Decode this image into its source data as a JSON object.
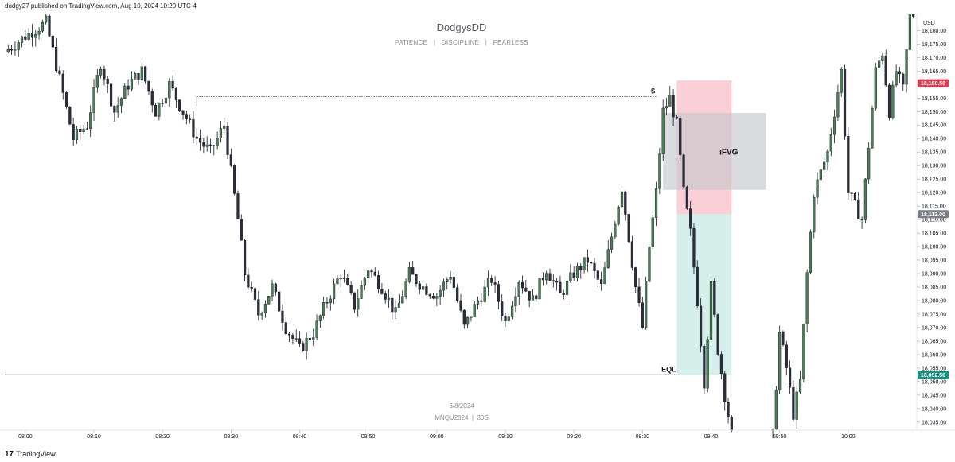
{
  "header": {
    "published": "dodgy27 published on TradingView.com, Aug 10, 2024 10:20 UTC-4"
  },
  "footer": {
    "brand": "TradingView",
    "brand_icon": "tradingview-logo-icon"
  },
  "watermark": {
    "title": "DodgysDD",
    "subtitle": "PATIENCE   |   DISCIPLINE   |   FEARLESS",
    "date": "6/8/2024",
    "symbol": "MNQU2024  |  30S"
  },
  "chart_data": {
    "type": "candlestick",
    "currency": "USD",
    "ylim": [
      18032,
      18186
    ],
    "xlim_minutes": [
      "07:57",
      "10:10"
    ],
    "y_ticks": [
      "18,180.00",
      "18,175.00",
      "18,170.00",
      "18,165.00",
      "18,160.00",
      "18,155.00",
      "18,150.00",
      "18,145.00",
      "18,140.00",
      "18,135.00",
      "18,130.00",
      "18,125.00",
      "18,120.00",
      "18,115.00",
      "18,110.00",
      "18,105.00",
      "18,100.00",
      "18,095.00",
      "18,090.00",
      "18,085.00",
      "18,080.00",
      "18,075.00",
      "18,070.00",
      "18,065.00",
      "18,060.00",
      "18,055.00",
      "18,050.00",
      "18,045.00",
      "18,040.00",
      "18,035.00"
    ],
    "y_tick_values": [
      18180,
      18175,
      18170,
      18165,
      18160,
      18155,
      18150,
      18145,
      18140,
      18135,
      18130,
      18125,
      18120,
      18115,
      18110,
      18105,
      18100,
      18095,
      18090,
      18085,
      18080,
      18075,
      18070,
      18065,
      18060,
      18055,
      18050,
      18045,
      18040,
      18035
    ],
    "x_ticks": [
      "08:00",
      "08:10",
      "08:20",
      "08:30",
      "08:40",
      "08:50",
      "09:00",
      "09:10",
      "09:20",
      "09:30",
      "09:40",
      "09:50",
      "10:00"
    ],
    "x_tick_minutes": [
      "08:00",
      "08:10",
      "08:20",
      "08:30",
      "08:40",
      "08:50",
      "09:00",
      "09:10",
      "09:20",
      "09:30",
      "09:40",
      "09:50",
      "10:00"
    ],
    "price_labels": [
      {
        "text": "18,160.50",
        "value": 18160.5,
        "color": "#e53950"
      },
      {
        "text": "18,112.00",
        "value": 18112.0,
        "color": "#7b7e87"
      },
      {
        "text": "18,052.50",
        "value": 18052.5,
        "color": "#14947e"
      }
    ],
    "candle_up_color": "#4a7f56",
    "candle_down_color": "#2a2e39",
    "anchors": [
      [
        "07:57",
        18172
      ],
      [
        "08:00",
        18178
      ],
      [
        "08:03",
        18183
      ],
      [
        "08:05",
        18162
      ],
      [
        "08:07",
        18140
      ],
      [
        "08:09",
        18145
      ],
      [
        "08:11",
        18168
      ],
      [
        "08:13",
        18150
      ],
      [
        "08:15",
        18160
      ],
      [
        "08:17",
        18165
      ],
      [
        "08:19",
        18150
      ],
      [
        "08:21",
        18160
      ],
      [
        "08:23",
        18150
      ],
      [
        "08:25",
        18140
      ],
      [
        "08:27",
        18135
      ],
      [
        "08:29",
        18145
      ],
      [
        "08:31",
        18110
      ],
      [
        "08:32",
        18090
      ],
      [
        "08:34",
        18075
      ],
      [
        "08:36",
        18085
      ],
      [
        "08:38",
        18070
      ],
      [
        "08:40",
        18062
      ],
      [
        "08:42",
        18068
      ],
      [
        "08:44",
        18080
      ],
      [
        "08:46",
        18090
      ],
      [
        "08:48",
        18078
      ],
      [
        "08:50",
        18092
      ],
      [
        "08:52",
        18085
      ],
      [
        "08:54",
        18075
      ],
      [
        "08:56",
        18090
      ],
      [
        "08:58",
        18085
      ],
      [
        "09:00",
        18082
      ],
      [
        "09:02",
        18090
      ],
      [
        "09:04",
        18070
      ],
      [
        "09:06",
        18080
      ],
      [
        "09:08",
        18088
      ],
      [
        "09:10",
        18072
      ],
      [
        "09:12",
        18088
      ],
      [
        "09:14",
        18080
      ],
      [
        "09:16",
        18092
      ],
      [
        "09:18",
        18082
      ],
      [
        "09:20",
        18090
      ],
      [
        "09:22",
        18095
      ],
      [
        "09:24",
        18085
      ],
      [
        "09:26",
        18110
      ],
      [
        "09:27",
        18122
      ],
      [
        "09:29",
        18085
      ],
      [
        "09:30",
        18070
      ],
      [
        "09:31",
        18100
      ],
      [
        "09:32",
        18120
      ],
      [
        "09:33",
        18150
      ],
      [
        "09:34",
        18155
      ],
      [
        "09:35",
        18145
      ],
      [
        "09:36",
        18120
      ],
      [
        "09:37",
        18105
      ],
      [
        "09:38",
        18080
      ],
      [
        "09:39",
        18050
      ],
      [
        "09:40",
        18085
      ],
      [
        "09:41",
        18062
      ],
      [
        "09:42",
        18045
      ],
      [
        "09:43",
        18030
      ],
      [
        "09:49",
        18030
      ],
      [
        "09:50",
        18068
      ],
      [
        "09:51",
        18055
      ],
      [
        "09:52",
        18038
      ],
      [
        "09:53",
        18050
      ],
      [
        "09:54",
        18090
      ],
      [
        "09:55",
        18120
      ],
      [
        "09:57",
        18135
      ],
      [
        "09:59",
        18165
      ],
      [
        "10:00",
        18120
      ],
      [
        "10:02",
        18110
      ],
      [
        "10:04",
        18165
      ],
      [
        "10:05",
        18172
      ],
      [
        "10:06",
        18150
      ],
      [
        "10:07",
        18165
      ],
      [
        "10:08",
        18158
      ],
      [
        "10:09",
        18186
      ]
    ],
    "annotations": [
      {
        "label": "$",
        "kind": "dotted-level",
        "value": 18155.5,
        "from": "08:25",
        "to": "09:32"
      },
      {
        "label": "EQL",
        "kind": "level",
        "value": 18052.5,
        "from": "07:57",
        "to": "09:35"
      },
      {
        "label": "",
        "kind": "zone",
        "color": "#f7a8b4",
        "from": "09:35",
        "to": "09:43",
        "y1": 18112,
        "y2": 18161.5
      },
      {
        "label": "",
        "kind": "zone",
        "color": "#b3e3d8",
        "from": "09:35",
        "to": "09:43",
        "y1": 18052.5,
        "y2": 18112
      },
      {
        "label": "iFVG",
        "kind": "zone",
        "color": "#c6c8cd",
        "from": "09:33",
        "to": "09:48",
        "y1": 18121,
        "y2": 18149.5
      }
    ]
  }
}
